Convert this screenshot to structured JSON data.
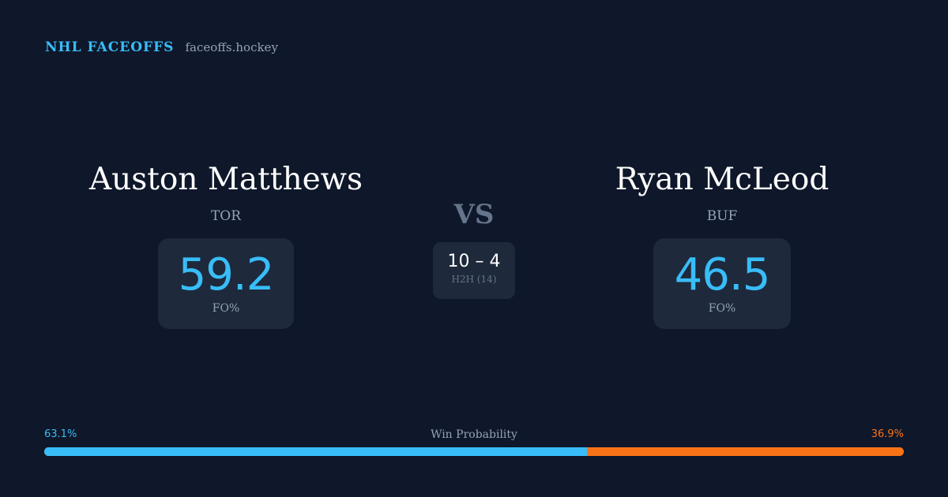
{
  "brand": {
    "title": "NHL FACEOFFS",
    "url": "faceoffs.hockey"
  },
  "left": {
    "name": "Auston Matthews",
    "team": "TOR",
    "fo_pct": "59.2",
    "fo_label": "FO%"
  },
  "right": {
    "name": "Ryan McLeod",
    "team": "BUF",
    "fo_pct": "46.5",
    "fo_label": "FO%"
  },
  "vs": "VS",
  "h2h": {
    "score": "10 – 4",
    "label": "H2H (14)"
  },
  "win_prob": {
    "label": "Win Probability",
    "left": "63.1%",
    "right": "36.9%",
    "left_value": 63.1,
    "colors": {
      "left": "#38bdf8",
      "right": "#f97316"
    }
  }
}
